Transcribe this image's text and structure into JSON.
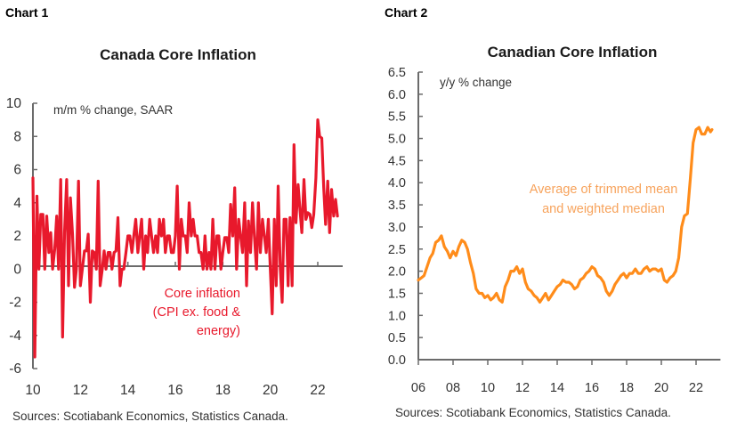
{
  "page": {
    "chart1_label": "Chart 1",
    "chart2_label": "Chart 2"
  },
  "chart_data": [
    {
      "type": "line",
      "title": "Canada Core Inflation",
      "unit_label": "m/m % change, SAAR",
      "xlabel": "",
      "ylabel": "",
      "source": "Sources: Scotiabank Economics, Statistics Canada.",
      "ylim": [
        -6,
        10
      ],
      "y_ticks": [
        "10",
        "8",
        "6",
        "4",
        "2",
        "0",
        "-2",
        "-4",
        "-6"
      ],
      "y_tick_values": [
        10,
        8,
        6,
        4,
        2,
        0,
        -2,
        -4,
        -6
      ],
      "xlim": [
        2010,
        2022.9
      ],
      "x_ticks": [
        "10",
        "12",
        "14",
        "16",
        "18",
        "20",
        "22"
      ],
      "x_tick_values": [
        2010,
        2012,
        2014,
        2016,
        2018,
        2020,
        2022
      ],
      "grid": false,
      "color": "#e8192c",
      "series": [
        {
          "name": "Core inflation (CPI ex. food & energy)",
          "annotation": [
            "Core inflation",
            "(CPI ex. food &",
            "energy)"
          ],
          "x": [
            2010.0,
            2010.08,
            2010.17,
            2010.25,
            2010.33,
            2010.42,
            2010.5,
            2010.58,
            2010.67,
            2010.75,
            2010.83,
            2010.92,
            2011.0,
            2011.08,
            2011.17,
            2011.25,
            2011.33,
            2011.42,
            2011.5,
            2011.58,
            2011.67,
            2011.75,
            2011.83,
            2011.92,
            2012.0,
            2012.08,
            2012.17,
            2012.25,
            2012.33,
            2012.42,
            2012.5,
            2012.58,
            2012.67,
            2012.75,
            2012.83,
            2012.92,
            2013.0,
            2013.08,
            2013.17,
            2013.25,
            2013.33,
            2013.42,
            2013.5,
            2013.58,
            2013.67,
            2013.75,
            2013.83,
            2013.92,
            2014.0,
            2014.08,
            2014.17,
            2014.25,
            2014.33,
            2014.42,
            2014.5,
            2014.58,
            2014.67,
            2014.75,
            2014.83,
            2014.92,
            2015.0,
            2015.08,
            2015.17,
            2015.25,
            2015.33,
            2015.42,
            2015.5,
            2015.58,
            2015.67,
            2015.75,
            2015.83,
            2015.92,
            2016.0,
            2016.08,
            2016.17,
            2016.25,
            2016.33,
            2016.42,
            2016.5,
            2016.58,
            2016.67,
            2016.75,
            2016.83,
            2016.92,
            2017.0,
            2017.08,
            2017.17,
            2017.25,
            2017.33,
            2017.42,
            2017.5,
            2017.58,
            2017.67,
            2017.75,
            2017.83,
            2017.92,
            2018.0,
            2018.08,
            2018.17,
            2018.25,
            2018.33,
            2018.42,
            2018.5,
            2018.58,
            2018.67,
            2018.75,
            2018.83,
            2018.92,
            2019.0,
            2019.08,
            2019.17,
            2019.25,
            2019.33,
            2019.42,
            2019.5,
            2019.58,
            2019.67,
            2019.75,
            2019.83,
            2019.92,
            2020.0,
            2020.08,
            2020.17,
            2020.25,
            2020.33,
            2020.42,
            2020.5,
            2020.58,
            2020.67,
            2020.75,
            2020.83,
            2020.92,
            2021.0,
            2021.08,
            2021.17,
            2021.25,
            2021.33,
            2021.42,
            2021.5,
            2021.58,
            2021.67,
            2021.75,
            2021.83,
            2021.92,
            2022.0,
            2022.08,
            2022.17,
            2022.25,
            2022.33,
            2022.42,
            2022.5,
            2022.58,
            2022.67,
            2022.75,
            2022.83
          ],
          "values": [
            5.5,
            -5.3,
            4.4,
            0.0,
            3.3,
            3.3,
            0.0,
            3.2,
            1.0,
            2.2,
            0.0,
            1.2,
            3.2,
            0.0,
            5.4,
            -4.1,
            2.2,
            5.4,
            -1.0,
            4.3,
            2.1,
            -1.1,
            0.0,
            5.3,
            -1.0,
            0.0,
            1.1,
            1.1,
            2.1,
            -2.0,
            1.1,
            1.0,
            0.0,
            5.3,
            -1.0,
            0.0,
            1.1,
            0.0,
            1.0,
            1.0,
            0.0,
            1.0,
            1.1,
            3.1,
            -1.0,
            0.0,
            0.0,
            1.0,
            2.0,
            2.0,
            1.0,
            2.0,
            3.0,
            1.0,
            2.0,
            3.0,
            0.0,
            2.0,
            1.0,
            3.0,
            2.0,
            1.0,
            2.0,
            1.0,
            3.0,
            2.0,
            3.0,
            1.0,
            2.0,
            2.0,
            1.0,
            1.0,
            2.0,
            5.0,
            0.0,
            3.0,
            2.0,
            2.0,
            1.0,
            4.0,
            2.0,
            3.0,
            2.0,
            2.0,
            1.0,
            1.0,
            0.0,
            2.0,
            0.0,
            1.0,
            0.0,
            3.0,
            0.0,
            2.0,
            2.0,
            0.0,
            1.0,
            1.9,
            1.9,
            1.0,
            3.9,
            2.0,
            4.9,
            0.0,
            3.0,
            2.0,
            1.0,
            4.0,
            -1.0,
            2.9,
            1.0,
            4.0,
            2.0,
            0.0,
            4.0,
            1.0,
            3.0,
            2.0,
            1.0,
            3.0,
            0.0,
            -2.7,
            3.0,
            -1.0,
            5.0,
            0.0,
            -2.0,
            3.0,
            3.0,
            -1.0,
            3.1,
            -1.0,
            7.5,
            2.8,
            5.1,
            3.6,
            2.2,
            5.4,
            3.0,
            3.4,
            3.3,
            2.5,
            3.3,
            5.5,
            9.0,
            8.0,
            7.9,
            4.9,
            2.7,
            5.3,
            2.2,
            4.8,
            3.2,
            4.2,
            3.2
          ]
        }
      ]
    },
    {
      "type": "line",
      "title": "Canadian Core Inflation",
      "unit_label": "y/y % change",
      "xlabel": "",
      "ylabel": "",
      "source": "Sources: Scotiabank Economics, Statistics Canada.",
      "ylim": [
        0.0,
        6.5
      ],
      "y_ticks": [
        "6.5",
        "6.0",
        "5.5",
        "5.0",
        "4.5",
        "4.0",
        "3.5",
        "3.0",
        "2.5",
        "2.0",
        "1.5",
        "1.0",
        "0.5",
        "0.0"
      ],
      "y_tick_values": [
        6.5,
        6.0,
        5.5,
        5.0,
        4.5,
        4.0,
        3.5,
        3.0,
        2.5,
        2.0,
        1.5,
        1.0,
        0.5,
        0.0
      ],
      "xlim": [
        2006,
        2023.2
      ],
      "x_ticks": [
        "06",
        "08",
        "10",
        "12",
        "14",
        "16",
        "18",
        "20",
        "22"
      ],
      "x_tick_values": [
        2006,
        2008,
        2010,
        2012,
        2014,
        2016,
        2018,
        2020,
        2022
      ],
      "grid": false,
      "color": "#ff8c1a",
      "series": [
        {
          "name": "Average of trimmed mean and weighted median",
          "annotation": [
            "Average of trimmed mean",
            "and weighted median"
          ],
          "x": [
            2006.0,
            2006.17,
            2006.33,
            2006.5,
            2006.67,
            2006.83,
            2007.0,
            2007.17,
            2007.33,
            2007.5,
            2007.67,
            2007.83,
            2008.0,
            2008.17,
            2008.33,
            2008.5,
            2008.67,
            2008.83,
            2009.0,
            2009.17,
            2009.33,
            2009.5,
            2009.67,
            2009.83,
            2010.0,
            2010.17,
            2010.33,
            2010.5,
            2010.67,
            2010.83,
            2011.0,
            2011.17,
            2011.33,
            2011.5,
            2011.67,
            2011.83,
            2012.0,
            2012.17,
            2012.33,
            2012.5,
            2012.67,
            2012.83,
            2013.0,
            2013.17,
            2013.33,
            2013.5,
            2013.67,
            2013.83,
            2014.0,
            2014.17,
            2014.33,
            2014.5,
            2014.67,
            2014.83,
            2015.0,
            2015.17,
            2015.33,
            2015.5,
            2015.67,
            2015.83,
            2016.0,
            2016.17,
            2016.33,
            2016.5,
            2016.67,
            2016.83,
            2017.0,
            2017.17,
            2017.33,
            2017.5,
            2017.67,
            2017.83,
            2018.0,
            2018.17,
            2018.33,
            2018.5,
            2018.67,
            2018.83,
            2019.0,
            2019.17,
            2019.33,
            2019.5,
            2019.67,
            2019.83,
            2020.0,
            2020.17,
            2020.33,
            2020.5,
            2020.67,
            2020.83,
            2021.0,
            2021.17,
            2021.33,
            2021.5,
            2021.67,
            2021.83,
            2022.0,
            2022.17,
            2022.33,
            2022.5,
            2022.67,
            2022.83,
            2022.92
          ],
          "values": [
            1.8,
            1.85,
            1.9,
            2.1,
            2.3,
            2.4,
            2.65,
            2.7,
            2.8,
            2.55,
            2.45,
            2.3,
            2.45,
            2.35,
            2.55,
            2.7,
            2.65,
            2.5,
            2.2,
            1.95,
            1.6,
            1.5,
            1.5,
            1.4,
            1.45,
            1.35,
            1.4,
            1.5,
            1.35,
            1.3,
            1.65,
            1.8,
            2.0,
            2.0,
            2.1,
            1.95,
            2.05,
            1.75,
            1.6,
            1.55,
            1.45,
            1.4,
            1.3,
            1.4,
            1.5,
            1.35,
            1.45,
            1.55,
            1.65,
            1.7,
            1.8,
            1.75,
            1.75,
            1.7,
            1.6,
            1.65,
            1.8,
            1.85,
            1.95,
            2.0,
            2.1,
            2.05,
            1.9,
            1.85,
            1.75,
            1.55,
            1.45,
            1.55,
            1.7,
            1.8,
            1.9,
            1.95,
            1.85,
            1.95,
            1.95,
            2.05,
            1.95,
            1.95,
            2.05,
            2.1,
            2.0,
            2.05,
            2.05,
            2.0,
            2.05,
            1.8,
            1.75,
            1.85,
            1.9,
            2.0,
            2.3,
            3.0,
            3.25,
            3.3,
            4.1,
            4.9,
            5.2,
            5.25,
            5.1,
            5.1,
            5.25,
            5.15,
            5.2
          ]
        }
      ]
    }
  ]
}
